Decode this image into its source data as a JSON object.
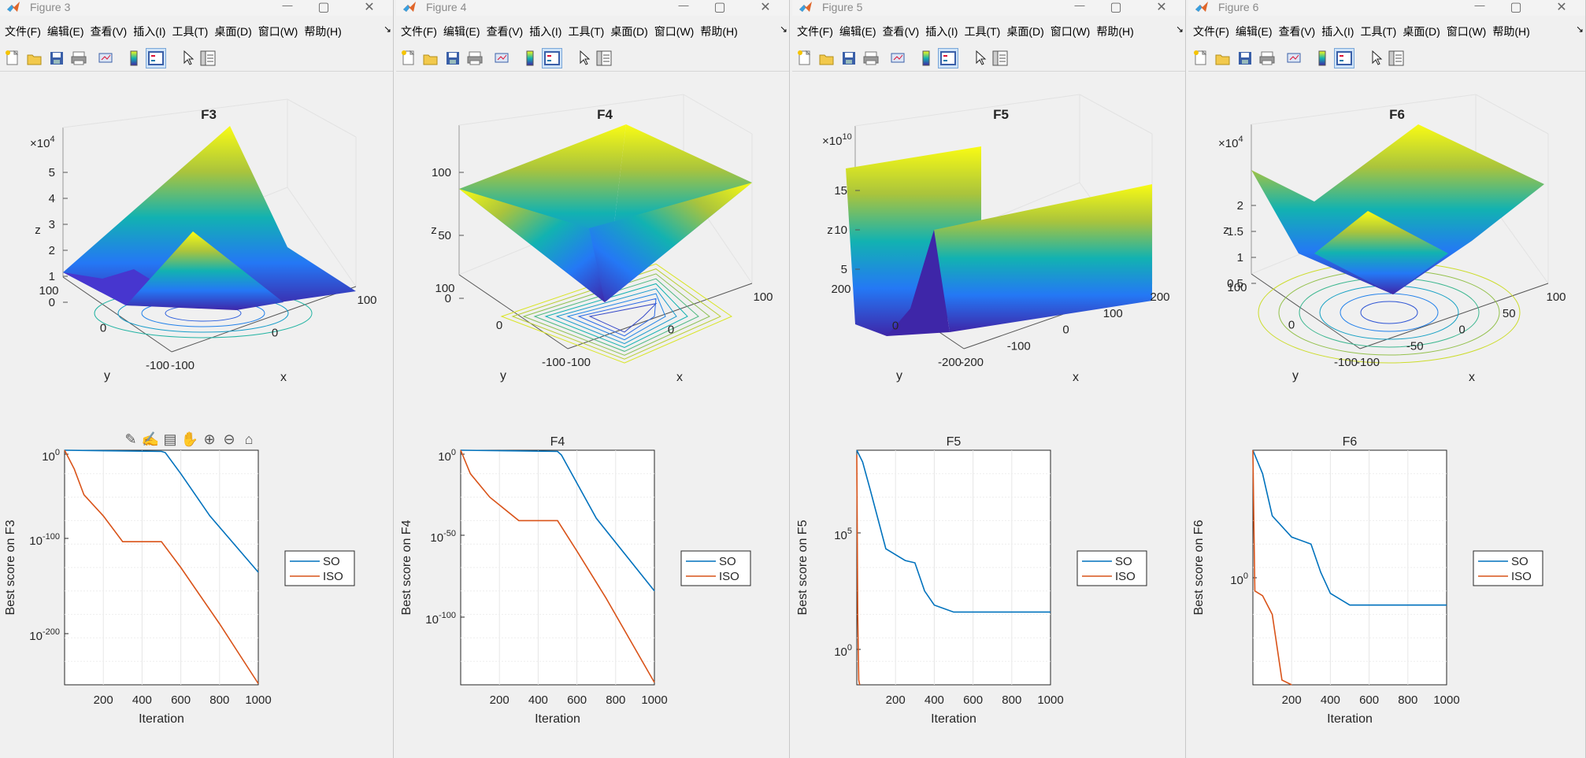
{
  "windows": [
    {
      "title": "Figure 3",
      "left": 0,
      "width": 500,
      "menu": [
        "文件(F)",
        "编辑(E)",
        "查看(V)",
        "插入(I)",
        "工具(T)",
        "桌面(D)",
        "窗口(W)",
        "帮助(H)"
      ],
      "menu_more": "↘",
      "surface": {
        "title": "F3",
        "xlabel": "x",
        "ylabel": "y",
        "zlabel": "z",
        "zticks": [
          "0",
          "1",
          "2",
          "3",
          "4",
          "5"
        ],
        "zexp_base": "×10",
        "zexp_pow": "4",
        "xticks": [
          "-100",
          "0",
          "100"
        ],
        "yticks": [
          "-100",
          "0",
          "100"
        ]
      },
      "convergence": {
        "title": "",
        "xlabel": "Iteration",
        "ylabel": "Best score on F3",
        "xticks": [
          "200",
          "400",
          "600",
          "800",
          "1000"
        ],
        "yticks": [
          {
            "base": "10",
            "pow": "0"
          },
          {
            "base": "10",
            "pow": "-100"
          },
          {
            "base": "10",
            "pow": "-200"
          }
        ],
        "legend": [
          "SO",
          "ISO"
        ]
      }
    },
    {
      "title": "Figure 4",
      "left": 503,
      "width": 500,
      "menu": [
        "文件(F)",
        "编辑(E)",
        "查看(V)",
        "插入(I)",
        "工具(T)",
        "桌面(D)",
        "窗口(W)",
        "帮助(H)"
      ],
      "menu_more": "↘",
      "surface": {
        "title": "F4",
        "xlabel": "x",
        "ylabel": "y",
        "zlabel": "z",
        "zticks": [
          "0",
          "50",
          "100"
        ],
        "zexp_base": "",
        "zexp_pow": "",
        "xticks": [
          "-100",
          "0",
          "100"
        ],
        "yticks": [
          "-100",
          "0",
          "100"
        ]
      },
      "convergence": {
        "title": "F4",
        "xlabel": "Iteration",
        "ylabel": "Best score on F4",
        "xticks": [
          "200",
          "400",
          "600",
          "800",
          "1000"
        ],
        "yticks": [
          {
            "base": "10",
            "pow": "0"
          },
          {
            "base": "10",
            "pow": "-50"
          },
          {
            "base": "10",
            "pow": "-100"
          }
        ],
        "legend": [
          "SO",
          "ISO"
        ]
      }
    },
    {
      "title": "Figure 5",
      "left": 1006,
      "width": 500,
      "menu": [
        "文件(F)",
        "编辑(E)",
        "查看(V)",
        "插入(I)",
        "工具(T)",
        "桌面(D)",
        "窗口(W)",
        "帮助(H)"
      ],
      "menu_more": "↘",
      "surface": {
        "title": "F5",
        "xlabel": "x",
        "ylabel": "y",
        "zlabel": "z",
        "zticks": [
          "5",
          "10",
          "15"
        ],
        "zexp_base": "×10",
        "zexp_pow": "10",
        "xticks": [
          "-200",
          "-100",
          "0",
          "100",
          "200"
        ],
        "yticks": [
          "-200",
          "0",
          "200"
        ]
      },
      "convergence": {
        "title": "F5",
        "xlabel": "Iteration",
        "ylabel": "Best score on F5",
        "xticks": [
          "200",
          "400",
          "600",
          "800",
          "1000"
        ],
        "yticks": [
          {
            "base": "10",
            "pow": "5"
          },
          {
            "base": "10",
            "pow": "0"
          }
        ],
        "legend": [
          "SO",
          "ISO"
        ]
      }
    },
    {
      "title": "Figure 6",
      "left": 1509,
      "width": 505,
      "menu": [
        "文件(F)",
        "编辑(E)",
        "查看(V)",
        "插入(I)",
        "工具(T)",
        "桌面(D)",
        "窗口(W)",
        "帮助(H)"
      ],
      "menu_more": "↘",
      "surface": {
        "title": "F6",
        "xlabel": "x",
        "ylabel": "y",
        "zlabel": "z",
        "zticks": [
          "0.5",
          "1",
          "1.5",
          "2"
        ],
        "zexp_base": "×10",
        "zexp_pow": "4",
        "xticks": [
          "-100",
          "-50",
          "0",
          "50",
          "100"
        ],
        "yticks": [
          "-100",
          "0",
          "100"
        ]
      },
      "convergence": {
        "title": "F6",
        "xlabel": "Iteration",
        "ylabel": "Best score on F6",
        "xticks": [
          "200",
          "400",
          "600",
          "800",
          "1000"
        ],
        "yticks": [
          {
            "base": "10",
            "pow": "0"
          }
        ],
        "legend": [
          "SO",
          "ISO"
        ]
      }
    }
  ],
  "colors": {
    "so": "#0072BD",
    "iso": "#D95319",
    "grid": "#e6e6e6"
  }
}
